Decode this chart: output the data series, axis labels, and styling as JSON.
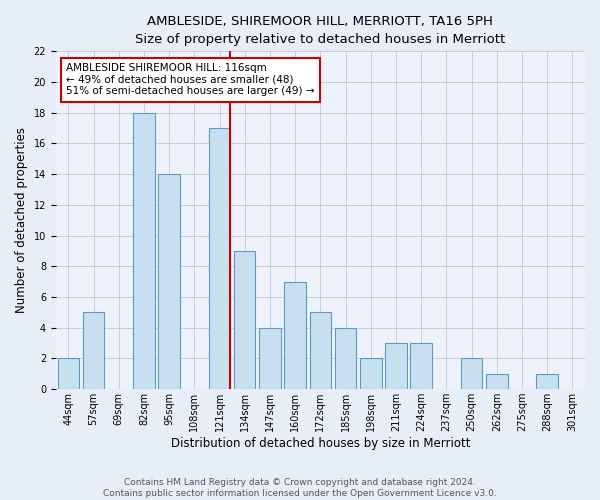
{
  "title": "AMBLESIDE, SHIREMOOR HILL, MERRIOTT, TA16 5PH",
  "subtitle": "Size of property relative to detached houses in Merriott",
  "xlabel": "Distribution of detached houses by size in Merriott",
  "ylabel": "Number of detached properties",
  "bin_labels": [
    "44sqm",
    "57sqm",
    "69sqm",
    "82sqm",
    "95sqm",
    "108sqm",
    "121sqm",
    "134sqm",
    "147sqm",
    "160sqm",
    "172sqm",
    "185sqm",
    "198sqm",
    "211sqm",
    "224sqm",
    "237sqm",
    "250sqm",
    "262sqm",
    "275sqm",
    "288sqm",
    "301sqm"
  ],
  "bar_heights": [
    2,
    5,
    0,
    18,
    14,
    0,
    17,
    9,
    4,
    7,
    5,
    4,
    2,
    3,
    3,
    0,
    2,
    1,
    0,
    1,
    0
  ],
  "bar_color": "#c8dff0",
  "bar_edge_color": "#5b9ac4",
  "vline_color": "#cc0000",
  "vline_bar_index": 6,
  "ylim": [
    0,
    22
  ],
  "yticks": [
    0,
    2,
    4,
    6,
    8,
    10,
    12,
    14,
    16,
    18,
    20,
    22
  ],
  "annotation_title": "AMBLESIDE SHIREMOOR HILL: 116sqm",
  "annotation_line1": "← 49% of detached houses are smaller (48)",
  "annotation_line2": "51% of semi-detached houses are larger (49) →",
  "annotation_box_color": "#ffffff",
  "annotation_box_edge": "#cc0000",
  "footer_line1": "Contains HM Land Registry data © Crown copyright and database right 2024.",
  "footer_line2": "Contains public sector information licensed under the Open Government Licence v3.0.",
  "background_color": "#e8eef8",
  "plot_bg_color": "#eef3fb",
  "grid_color": "#c0c8d8",
  "title_fontsize": 9.5,
  "subtitle_fontsize": 8.5,
  "axis_label_fontsize": 8.5,
  "tick_fontsize": 7,
  "annotation_fontsize": 7.5,
  "footer_fontsize": 6.5
}
